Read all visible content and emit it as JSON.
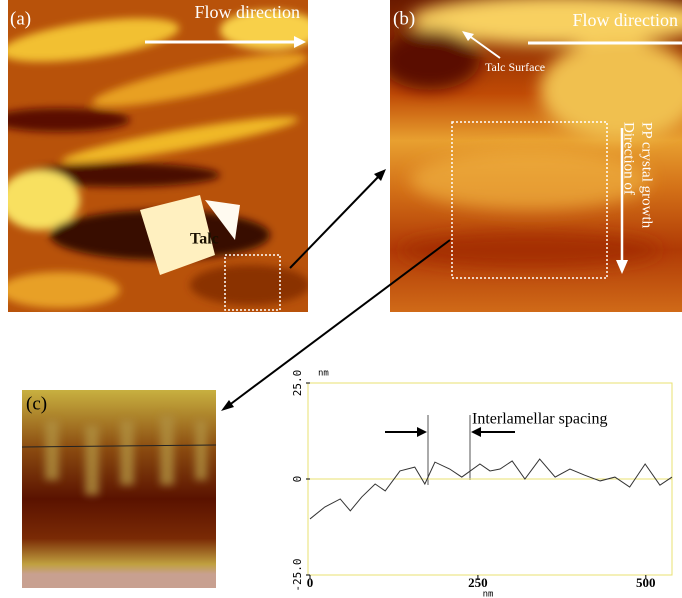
{
  "panels": {
    "a": {
      "label": "(a)",
      "flow": "Flow direction",
      "talc": "Talc"
    },
    "b": {
      "label": "(b)",
      "flow": "Flow direction",
      "surface": "Talc Surface",
      "growth": [
        "Direction of",
        "PP crystal growth"
      ]
    },
    "c": {
      "label": "(c)"
    }
  },
  "profile": {
    "type": "line",
    "y_unit": "nm",
    "x_unit": "nm",
    "annotation": "Interlamellar spacing",
    "color": "#333333",
    "x": [
      0,
      22,
      45,
      60,
      77,
      97,
      112,
      134,
      156,
      171,
      186,
      208,
      226,
      253,
      268,
      283,
      301,
      320,
      342,
      365,
      387,
      409,
      432,
      454,
      476,
      499,
      521,
      539
    ],
    "values": [
      -10.4,
      -7.3,
      -5.2,
      -8.3,
      -4.7,
      -1.3,
      -3.1,
      2.1,
      3.1,
      -1.3,
      4.4,
      2.6,
      0.5,
      3.9,
      2.1,
      2.6,
      4.7,
      0,
      5.2,
      0.5,
      2.6,
      1.0,
      -0.5,
      0.5,
      -2.1,
      3.9,
      -1.6,
      0.5
    ],
    "xlim": [
      0,
      539
    ],
    "ylim": [
      -25,
      25
    ],
    "xticks": [
      0,
      250,
      500
    ],
    "yticks": [
      {
        "value": 25,
        "label": "25.0"
      },
      0,
      {
        "value": -25,
        "label": "-25.0"
      }
    ]
  }
}
